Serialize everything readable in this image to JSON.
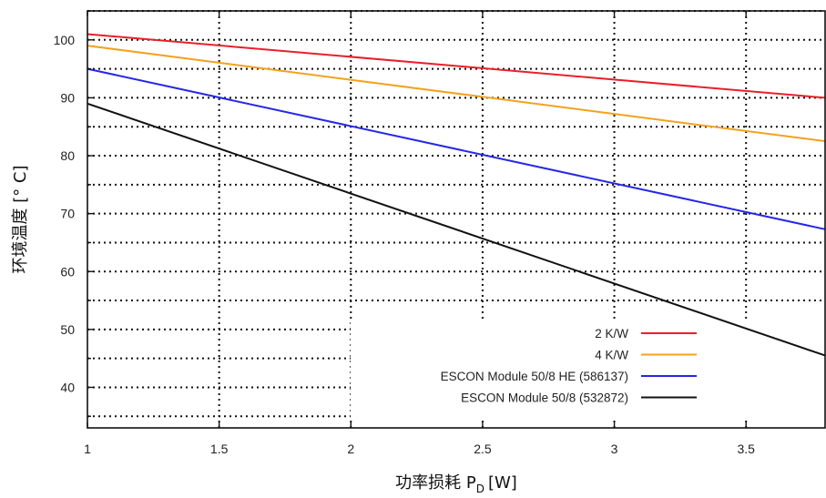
{
  "chart_data": {
    "type": "line",
    "title": "",
    "xlabel": "功率损耗 P",
    "xlabel_subscript": "D",
    "xlabel_unit": "[W]",
    "ylabel": "环境温度 [° C]",
    "xlim": [
      1,
      3.8
    ],
    "ylim": [
      33,
      105
    ],
    "xticks": [
      1,
      1.5,
      2,
      2.5,
      3,
      3.5
    ],
    "xtick_labels": [
      "1",
      "1.5",
      "2",
      "2.5",
      "3",
      "3.5"
    ],
    "yticks": [
      40,
      50,
      60,
      70,
      80,
      90,
      100
    ],
    "ytick_labels": [
      "40",
      "50",
      "60",
      "70",
      "80",
      "90",
      "100"
    ],
    "grid": true,
    "legend_position": "bottom-right",
    "series": [
      {
        "name": "2 K/W",
        "color": "#e8202a",
        "x": [
          1,
          3.8
        ],
        "y": [
          101,
          90
        ]
      },
      {
        "name": "4 K/W",
        "color": "#f4a11e",
        "x": [
          1,
          3.8
        ],
        "y": [
          99,
          82.5
        ]
      },
      {
        "name": "ESCON Module 50/8 HE (586137)",
        "color": "#2626e8",
        "x": [
          1,
          3.8
        ],
        "y": [
          95,
          67.3
        ]
      },
      {
        "name": "ESCON Module 50/8 (532872)",
        "color": "#111111",
        "x": [
          1,
          3.8
        ],
        "y": [
          89,
          45.5
        ]
      }
    ]
  }
}
